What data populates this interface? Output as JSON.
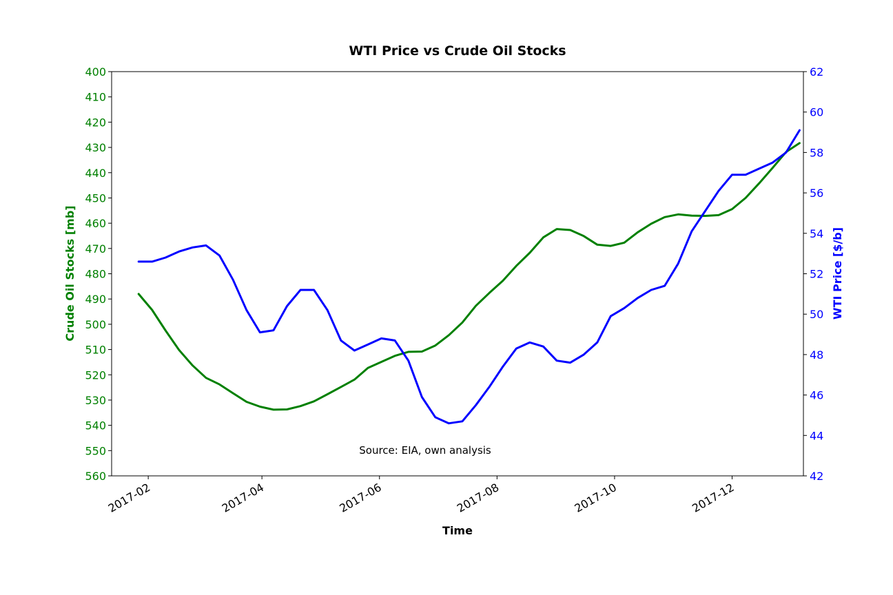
{
  "chart_data": {
    "type": "line",
    "title": "WTI Price vs Crude Oil Stocks",
    "xlabel": "Time",
    "annotation": "Source: EIA, own analysis",
    "x_ticks": [
      "2017-02",
      "2017-04",
      "2017-06",
      "2017-08",
      "2017-10",
      "2017-12"
    ],
    "x_range": [
      "2017-01-13",
      "2018-01-07"
    ],
    "grid": false,
    "legend": "none",
    "left_axis": {
      "label": "Crude Oil Stocks [mb]",
      "color": "#008000",
      "range": [
        400,
        560
      ],
      "inverted": true,
      "ticks": [
        "400",
        "410",
        "420",
        "430",
        "440",
        "450",
        "460",
        "470",
        "480",
        "490",
        "500",
        "510",
        "520",
        "530",
        "540",
        "550",
        "560"
      ]
    },
    "right_axis": {
      "label": "WTI Price [$/b]",
      "color": "#0000ff",
      "range": [
        42,
        62
      ],
      "ticks": [
        "42",
        "44",
        "46",
        "48",
        "50",
        "52",
        "54",
        "56",
        "58",
        "60",
        "62"
      ]
    },
    "series": [
      {
        "axis": "left",
        "color": "#008000",
        "x": [
          "2017-01-27",
          "2017-02-03",
          "2017-02-10",
          "2017-02-17",
          "2017-02-24",
          "2017-03-03",
          "2017-03-10",
          "2017-03-17",
          "2017-03-24",
          "2017-03-31",
          "2017-04-07",
          "2017-04-14",
          "2017-04-21",
          "2017-04-28",
          "2017-05-05",
          "2017-05-12",
          "2017-05-19",
          "2017-05-26",
          "2017-06-02",
          "2017-06-09",
          "2017-06-16",
          "2017-06-23",
          "2017-06-30",
          "2017-07-07",
          "2017-07-14",
          "2017-07-21",
          "2017-07-28",
          "2017-08-04",
          "2017-08-11",
          "2017-08-18",
          "2017-08-25",
          "2017-09-01",
          "2017-09-08",
          "2017-09-15",
          "2017-09-22",
          "2017-09-29",
          "2017-10-06",
          "2017-10-13",
          "2017-10-20",
          "2017-10-27",
          "2017-11-03",
          "2017-11-10",
          "2017-11-17",
          "2017-11-24",
          "2017-12-01",
          "2017-12-08",
          "2017-12-15",
          "2017-12-22",
          "2017-12-29",
          "2018-01-05"
        ],
        "values": [
          488.0,
          494.3,
          502.5,
          510.2,
          516.3,
          521.2,
          523.8,
          527.3,
          530.7,
          532.6,
          533.8,
          533.7,
          532.4,
          530.5,
          527.7,
          524.8,
          521.9,
          517.3,
          514.9,
          512.5,
          510.9,
          510.8,
          508.4,
          504.3,
          499.3,
          492.7,
          487.6,
          482.8,
          476.9,
          471.7,
          465.6,
          462.3,
          462.7,
          465.1,
          468.5,
          469.0,
          467.7,
          463.6,
          460.2,
          457.6,
          456.5,
          457.0,
          457.1,
          456.8,
          454.4,
          450.0,
          444.2,
          438.1,
          431.8,
          428.3
        ]
      },
      {
        "axis": "right",
        "color": "#0000ff",
        "x": [
          "2017-01-27",
          "2017-02-03",
          "2017-02-10",
          "2017-02-17",
          "2017-02-24",
          "2017-03-03",
          "2017-03-10",
          "2017-03-17",
          "2017-03-24",
          "2017-03-31",
          "2017-04-07",
          "2017-04-14",
          "2017-04-21",
          "2017-04-28",
          "2017-05-05",
          "2017-05-12",
          "2017-05-19",
          "2017-05-26",
          "2017-06-02",
          "2017-06-09",
          "2017-06-16",
          "2017-06-23",
          "2017-06-30",
          "2017-07-07",
          "2017-07-14",
          "2017-07-21",
          "2017-07-28",
          "2017-08-04",
          "2017-08-11",
          "2017-08-18",
          "2017-08-25",
          "2017-09-01",
          "2017-09-08",
          "2017-09-15",
          "2017-09-22",
          "2017-09-29",
          "2017-10-06",
          "2017-10-13",
          "2017-10-20",
          "2017-10-27",
          "2017-11-03",
          "2017-11-10",
          "2017-11-17",
          "2017-11-24",
          "2017-12-01",
          "2017-12-08",
          "2017-12-15",
          "2017-12-22",
          "2017-12-29",
          "2018-01-05"
        ],
        "values": [
          52.6,
          52.6,
          52.8,
          53.1,
          53.3,
          53.4,
          52.9,
          51.7,
          50.2,
          49.1,
          49.2,
          50.4,
          51.2,
          51.2,
          50.2,
          48.7,
          48.2,
          48.5,
          48.8,
          48.7,
          47.7,
          45.9,
          44.9,
          44.6,
          44.7,
          45.5,
          46.4,
          47.4,
          48.3,
          48.6,
          48.4,
          47.7,
          47.6,
          48.0,
          48.6,
          49.9,
          50.3,
          50.8,
          51.2,
          51.4,
          52.5,
          54.1,
          55.1,
          56.1,
          56.9,
          56.9,
          57.2,
          57.5,
          58.0,
          59.1
        ]
      }
    ]
  }
}
